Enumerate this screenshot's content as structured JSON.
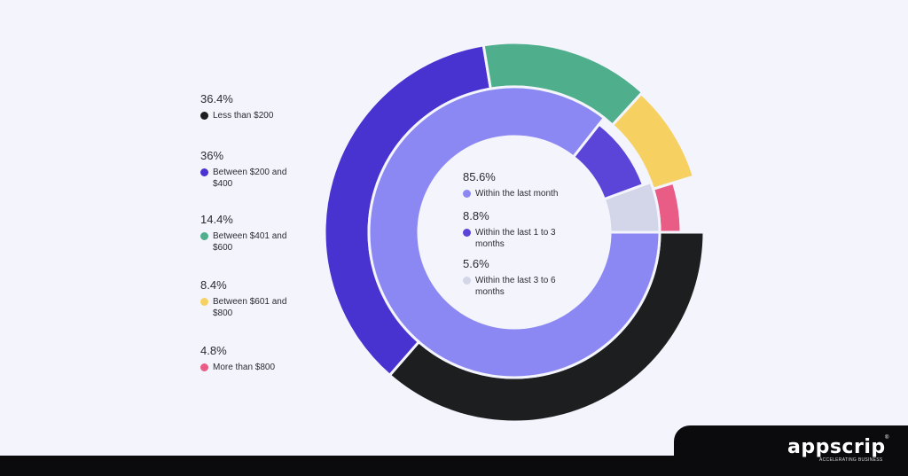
{
  "chart_data": {
    "type": "donut",
    "rings": [
      {
        "name": "",
        "position": "outer",
        "slices": [
          {
            "label": "Less than $200",
            "value": 36.4,
            "value_label": "36.4%",
            "color": "#1d1e20"
          },
          {
            "label": "Between $200 and $400",
            "value": 36,
            "value_label": "36%",
            "color": "#4832d0"
          },
          {
            "label": "Between $401 and $600",
            "value": 14.4,
            "value_label": "14.4%",
            "color": "#4fae8b"
          },
          {
            "label": "Between $601 and $800",
            "value": 8.4,
            "value_label": "8.4%",
            "color": "#f6d162"
          },
          {
            "label": "More than $800",
            "value": 4.8,
            "value_label": "4.8%",
            "color": "#e95c85"
          }
        ]
      },
      {
        "name": "",
        "position": "inner",
        "slices": [
          {
            "label": "Within the last month",
            "value": 85.6,
            "value_label": "85.6%",
            "color": "#8b88f3"
          },
          {
            "label": "Within the last 1 to 3 months",
            "value": 8.8,
            "value_label": "8.8%",
            "color": "#5b45d9"
          },
          {
            "label": "Within the last 3 to 6 months",
            "value": 5.6,
            "value_label": "5.6%",
            "color": "#d3d5e8"
          }
        ]
      }
    ]
  },
  "brand": {
    "logo_text": "appscrip",
    "registered_mark": "®",
    "tagline": "ACCELERATING BUSINESS"
  }
}
